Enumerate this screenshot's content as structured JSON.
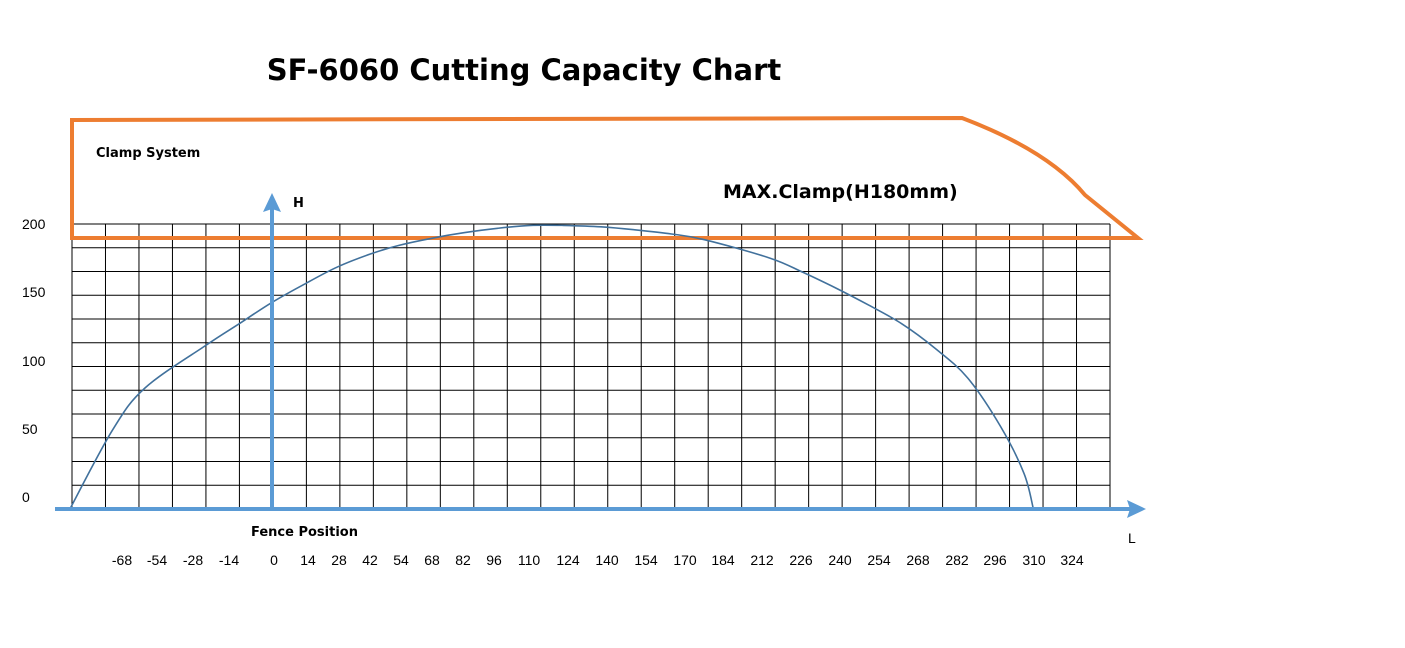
{
  "chart_data": {
    "type": "area",
    "title": "SF-6060 Cutting Capacity Chart",
    "xlabel": "Fence Position",
    "ylabel": "H",
    "x_axis_end_label": "L",
    "y_ticks": [
      "0",
      "50",
      "100",
      "150",
      "200"
    ],
    "x_ticks": [
      "-68",
      "-54",
      "-28",
      "-14",
      "0",
      "14",
      "28",
      "42",
      "54",
      "68",
      "82",
      "96",
      "110",
      "124",
      "140",
      "154",
      "170",
      "184",
      "212",
      "226",
      "240",
      "254",
      "268",
      "282",
      "296",
      "310",
      "324"
    ],
    "ylim": [
      0,
      200
    ],
    "grid": true,
    "curve": {
      "x": [
        -86,
        -68,
        -54,
        -28,
        -14,
        0,
        14,
        28,
        42,
        54,
        68,
        82,
        96,
        110,
        124,
        140,
        154,
        170,
        184,
        212,
        226,
        240,
        254,
        268,
        282,
        296,
        310,
        320,
        324
      ],
      "y": [
        0,
        55,
        85,
        115,
        130,
        145,
        158,
        170,
        179,
        185,
        190,
        194,
        197,
        199,
        199,
        198,
        196,
        193,
        189,
        176,
        166,
        155,
        143,
        130,
        113,
        92,
        58,
        25,
        0
      ]
    },
    "clamp": {
      "label": "Clamp System",
      "max_label": "MAX.Clamp(H180mm)",
      "color": "#ED7D31"
    },
    "axis_color": "#5B9BD5",
    "curve_color": "#41719C"
  }
}
